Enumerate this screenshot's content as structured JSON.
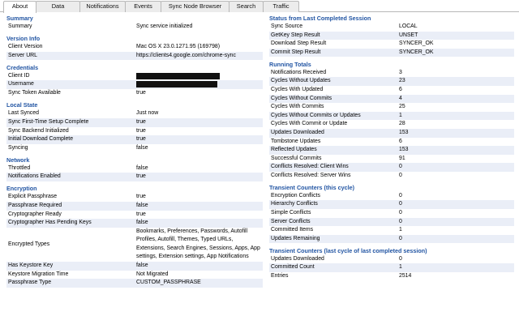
{
  "tabs": [
    {
      "label": "About",
      "active": true
    },
    {
      "label": "Data",
      "active": false
    },
    {
      "label": "Notifications",
      "active": false
    },
    {
      "label": "Events",
      "active": false
    },
    {
      "label": "Sync Node Browser",
      "active": false
    },
    {
      "label": "Search",
      "active": false
    },
    {
      "label": "Traffic",
      "active": false
    }
  ],
  "left_sections": [
    {
      "title": "Summary",
      "rows": [
        {
          "key": "Summary",
          "value": "Sync service initialized"
        }
      ]
    },
    {
      "title": "Version Info",
      "rows": [
        {
          "key": "Client Version",
          "value": "Mac OS X 23.0.1271.95 (169798)"
        },
        {
          "key": "Server URL",
          "value": "https://clients4.google.com/chrome-sync"
        }
      ]
    },
    {
      "title": "Credentials",
      "rows": [
        {
          "key": "Client ID",
          "value": "",
          "redacted": true
        },
        {
          "key": "Username",
          "value": "",
          "redacted": true
        },
        {
          "key": "Sync Token Available",
          "value": "true"
        }
      ]
    },
    {
      "title": "Local State",
      "rows": [
        {
          "key": "Last Synced",
          "value": "Just now"
        },
        {
          "key": "Sync First-Time Setup Complete",
          "value": "true"
        },
        {
          "key": "Sync Backend Initialized",
          "value": "true"
        },
        {
          "key": "Initial Download Complete",
          "value": "true"
        },
        {
          "key": "Syncing",
          "value": "false"
        }
      ]
    },
    {
      "title": "Network",
      "rows": [
        {
          "key": "Throttled",
          "value": "false"
        },
        {
          "key": "Notifications Enabled",
          "value": "true"
        }
      ]
    },
    {
      "title": "Encryption",
      "rows": [
        {
          "key": "Explicit Passphrase",
          "value": "true"
        },
        {
          "key": "Passphrase Required",
          "value": "false"
        },
        {
          "key": "Cryptographer Ready",
          "value": "true"
        },
        {
          "key": "Cryptographer Has Pending Keys",
          "value": "false"
        },
        {
          "key": "Encrypted Types",
          "value": "Bookmarks, Preferences, Passwords, Autofill Profiles, Autofill, Themes, Typed URLs, Extensions, Search Engines, Sessions, Apps, App settings, Extension settings, App Notifications",
          "multi": true
        },
        {
          "key": "Has Keystore Key",
          "value": "false"
        },
        {
          "key": "Keystore Migration Time",
          "value": "Not Migrated"
        },
        {
          "key": "Passphrase Type",
          "value": "CUSTOM_PASSPHRASE"
        }
      ]
    }
  ],
  "right_sections": [
    {
      "title": "Status from Last Completed Session",
      "rows": [
        {
          "key": "Sync Source",
          "value": "LOCAL"
        },
        {
          "key": "GetKey Step Result",
          "value": "UNSET"
        },
        {
          "key": "Download Step Result",
          "value": "SYNCER_OK"
        },
        {
          "key": "Commit Step Result",
          "value": "SYNCER_OK"
        }
      ]
    },
    {
      "title": "Running Totals",
      "rows": [
        {
          "key": "Notifications Received",
          "value": "3"
        },
        {
          "key": "Cycles Without Updates",
          "value": "23"
        },
        {
          "key": "Cycles With Updated",
          "value": "6"
        },
        {
          "key": "Cycles Without Commits",
          "value": "4"
        },
        {
          "key": "Cycles With Commits",
          "value": "25"
        },
        {
          "key": "Cycles Without Commits or Updates",
          "value": "1"
        },
        {
          "key": "Cycles With Commit or Update",
          "value": "28"
        },
        {
          "key": "Updates Downloaded",
          "value": "153"
        },
        {
          "key": "Tombstone Updates",
          "value": "6"
        },
        {
          "key": "Reflected Updates",
          "value": "153"
        },
        {
          "key": "Successful Commits",
          "value": "91"
        },
        {
          "key": "Conflicts Resolved: Client Wins",
          "value": "0"
        },
        {
          "key": "Conflicts Resolved: Server Wins",
          "value": "0"
        }
      ]
    },
    {
      "title": "Transient Counters (this cycle)",
      "rows": [
        {
          "key": "Encryption Conflicts",
          "value": "0"
        },
        {
          "key": "Hierarchy Conflicts",
          "value": "0"
        },
        {
          "key": "Simple Conflicts",
          "value": "0"
        },
        {
          "key": "Server Conflicts",
          "value": "0"
        },
        {
          "key": "Committed Items",
          "value": "1"
        },
        {
          "key": "Updates Remaining",
          "value": "0"
        }
      ]
    },
    {
      "title": "Transient Counters (last cycle of last completed session)",
      "rows": [
        {
          "key": "Updates Downloaded",
          "value": "0"
        },
        {
          "key": "Committed Count",
          "value": "1"
        },
        {
          "key": "Entries",
          "value": "2514"
        }
      ]
    }
  ]
}
